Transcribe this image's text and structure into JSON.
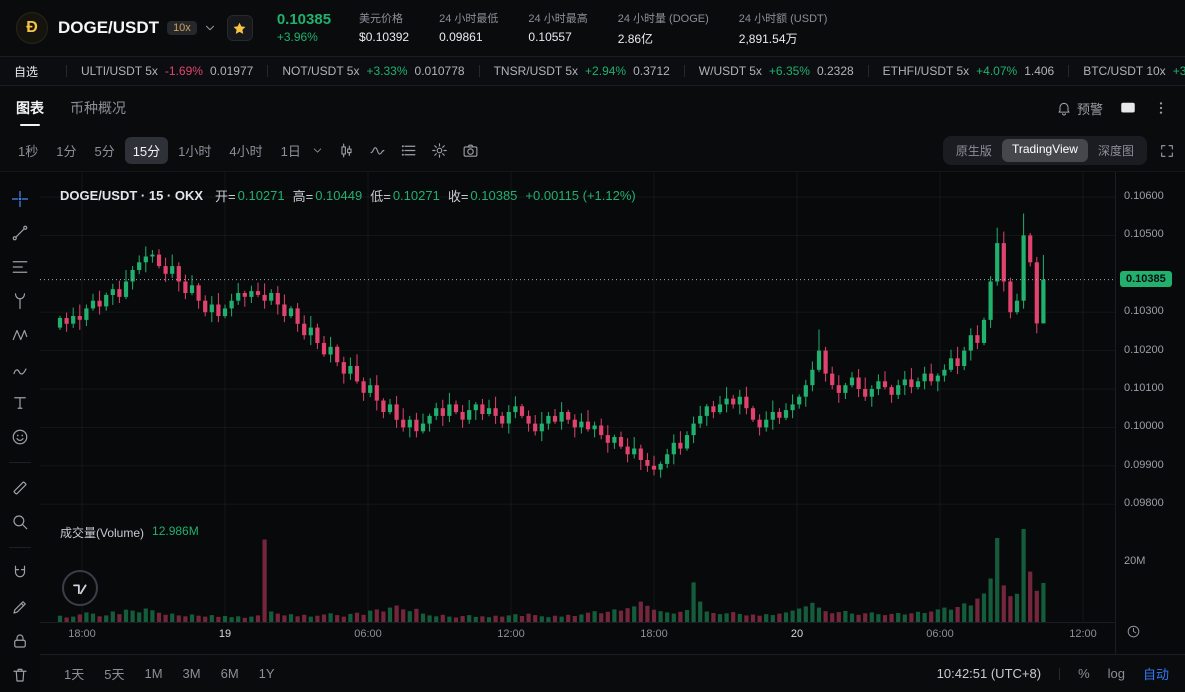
{
  "colors": {
    "up": "#21b06e",
    "down": "#e0446e",
    "accent_blue": "#3478f7",
    "gold": "#f5c542",
    "text_gray": "#8b8f98"
  },
  "header": {
    "pair": "DOGE/USDT",
    "leverage": "10x",
    "price": "0.10385",
    "change": "+3.96%",
    "stats": [
      {
        "label": "美元价格",
        "value": "$0.10392"
      },
      {
        "label": "24 小时最低",
        "value": "0.09861"
      },
      {
        "label": "24 小时最高",
        "value": "0.10557"
      },
      {
        "label": "24 小时量 (DOGE)",
        "value": "2.86亿"
      },
      {
        "label": "24 小时额 (USDT)",
        "value": "2,891.54万"
      }
    ]
  },
  "ticker_bar": {
    "favorites_label": "自选",
    "tickers": [
      {
        "pair": "ULTI/USDT 5x",
        "change": "-1.69%",
        "price": "0.01977",
        "dir": "down"
      },
      {
        "pair": "NOT/USDT 5x",
        "change": "+3.33%",
        "price": "0.010778",
        "dir": "up"
      },
      {
        "pair": "TNSR/USDT 5x",
        "change": "+2.94%",
        "price": "0.3712",
        "dir": "up"
      },
      {
        "pair": "W/USDT 5x",
        "change": "+6.35%",
        "price": "0.2328",
        "dir": "up"
      },
      {
        "pair": "ETHFI/USDT 5x",
        "change": "+4.07%",
        "price": "1.406",
        "dir": "up"
      },
      {
        "pair": "BTC/USDT 10x",
        "change": "+3.23%",
        "price": "60,428.3",
        "dir": "up"
      }
    ]
  },
  "tabs": {
    "chart": "图表",
    "overview": "币种概况",
    "alert": "预警"
  },
  "chart_toolbar": {
    "intervals": [
      "1秒",
      "1分",
      "5分",
      "15分",
      "1小时",
      "4小时",
      "1日"
    ],
    "active_interval": "15分",
    "icon_names": [
      "candle-style-icon",
      "indicators-icon",
      "templates-icon",
      "settings-icon",
      "screenshot-icon"
    ],
    "modes": [
      "原生版",
      "TradingView",
      "深度图"
    ],
    "active_mode": "TradingView"
  },
  "draw_tools": [
    "crosshair-icon",
    "trendline-icon",
    "fib-retracement-icon",
    "pitchfork-icon",
    "pattern-icon",
    "brush-icon",
    "text-tool-icon",
    "emoji-icon",
    "divider",
    "ruler-icon",
    "zoom-icon",
    "divider",
    "magnet-icon",
    "draw-pencil-icon",
    "lock-icon",
    "trash-icon"
  ],
  "legend": {
    "title": "DOGE/USDT · 15 · OKX",
    "open_label": "开=",
    "open": "0.10271",
    "high_label": "高=",
    "high": "0.10449",
    "low_label": "低=",
    "low": "0.10271",
    "close_label": "收=",
    "close": "0.10385",
    "change": "+0.00115 (+1.12%)"
  },
  "volume_legend": {
    "label": "成交量(Volume)",
    "value": "12.986M"
  },
  "axes": {
    "price_ticks": [
      0.106,
      0.105,
      0.103,
      0.102,
      0.101,
      0.1,
      0.099,
      0.098
    ],
    "volume_tick": "20M",
    "time_ticks": [
      {
        "label": "18:00",
        "x": 42
      },
      {
        "label": "19",
        "x": 185,
        "major": true
      },
      {
        "label": "06:00",
        "x": 328
      },
      {
        "label": "12:00",
        "x": 471
      },
      {
        "label": "18:00",
        "x": 614
      },
      {
        "label": "20",
        "x": 757,
        "major": true
      },
      {
        "label": "06:00",
        "x": 900
      },
      {
        "label": "12:00",
        "x": 1043
      }
    ]
  },
  "bottom_bar": {
    "ranges": [
      "1天",
      "5天",
      "1M",
      "3M",
      "6M",
      "1Y"
    ],
    "clock": "10:42:51 (UTC+8)",
    "percent": "%",
    "log": "log",
    "auto": "自动"
  },
  "chart_data": {
    "type": "candlestick",
    "symbol": "DOGE/USDT",
    "exchange": "OKX",
    "interval": "15m",
    "current_price": 0.10385,
    "current_price_label": "0.10385",
    "ylim": [
      0.098,
      0.106
    ],
    "first_open": 0.1026,
    "closes": [
      0.10285,
      0.1027,
      0.1029,
      0.1028,
      0.1031,
      0.1033,
      0.10315,
      0.10345,
      0.1036,
      0.1034,
      0.1038,
      0.1041,
      0.1043,
      0.10445,
      0.1045,
      0.1042,
      0.104,
      0.1042,
      0.1038,
      0.1035,
      0.1037,
      0.1033,
      0.103,
      0.1032,
      0.1029,
      0.1031,
      0.1033,
      0.1035,
      0.1034,
      0.10355,
      0.10345,
      0.1033,
      0.1035,
      0.1032,
      0.1029,
      0.1031,
      0.1027,
      0.1024,
      0.1026,
      0.1022,
      0.1019,
      0.1021,
      0.1017,
      0.1014,
      0.1016,
      0.1012,
      0.1009,
      0.1011,
      0.1007,
      0.1004,
      0.1006,
      0.1002,
      0.1,
      0.1002,
      0.0999,
      0.1001,
      0.1003,
      0.1005,
      0.1003,
      0.1006,
      0.1004,
      0.1002,
      0.10045,
      0.1006,
      0.10035,
      0.1005,
      0.1003,
      0.1001,
      0.1004,
      0.10055,
      0.1003,
      0.1001,
      0.0999,
      0.1001,
      0.1003,
      0.10015,
      0.1004,
      0.1002,
      0.1,
      0.10015,
      0.09995,
      0.10005,
      0.0998,
      0.0996,
      0.09975,
      0.0995,
      0.0993,
      0.09945,
      0.09915,
      0.099,
      0.0989,
      0.09905,
      0.0993,
      0.0996,
      0.09945,
      0.0998,
      0.1001,
      0.1003,
      0.10055,
      0.1004,
      0.1006,
      0.10075,
      0.1006,
      0.1008,
      0.1005,
      0.1002,
      0.1,
      0.1002,
      0.1004,
      0.10025,
      0.10045,
      0.1006,
      0.1008,
      0.1011,
      0.1015,
      0.102,
      0.1014,
      0.1011,
      0.1009,
      0.1011,
      0.1013,
      0.101,
      0.1008,
      0.101,
      0.1012,
      0.10105,
      0.10085,
      0.1011,
      0.10125,
      0.10105,
      0.1012,
      0.1014,
      0.1012,
      0.10135,
      0.1015,
      0.1018,
      0.1016,
      0.102,
      0.1024,
      0.1022,
      0.1028,
      0.1038,
      0.1048,
      0.1038,
      0.103,
      0.1033,
      0.105,
      0.1043,
      0.10271,
      0.10385
    ],
    "volumes": [
      2.1,
      1.5,
      1.8,
      2.5,
      3.2,
      2.8,
      1.9,
      2.2,
      3.5,
      2.6,
      4.1,
      3.8,
      3.2,
      4.5,
      3.9,
      3.1,
      2.4,
      2.8,
      2.2,
      1.9,
      2.5,
      2.1,
      1.8,
      2.3,
      1.7,
      2.0,
      1.6,
      1.9,
      1.4,
      1.8,
      2.2,
      27.5,
      3.5,
      2.8,
      2.2,
      2.6,
      1.9,
      2.4,
      1.8,
      2.1,
      2.5,
      2.9,
      2.3,
      1.8,
      2.7,
      3.1,
      2.4,
      3.8,
      4.2,
      3.5,
      4.8,
      5.5,
      4.2,
      3.6,
      4.4,
      2.8,
      2.2,
      1.9,
      2.4,
      1.8,
      1.5,
      2.0,
      2.3,
      1.7,
      1.9,
      1.6,
      2.1,
      1.8,
      2.2,
      2.6,
      2.0,
      2.8,
      2.3,
      1.9,
      1.6,
      2.1,
      1.8,
      2.4,
      2.0,
      2.5,
      3.1,
      3.6,
      2.9,
      3.4,
      4.2,
      3.8,
      4.6,
      5.2,
      6.8,
      5.4,
      4.1,
      3.6,
      3.2,
      2.8,
      3.4,
      4.0,
      13.2,
      6.8,
      3.5,
      3.0,
      2.6,
      2.9,
      3.3,
      2.7,
      2.2,
      2.5,
      2.1,
      2.6,
      2.3,
      2.8,
      3.2,
      3.8,
      4.5,
      5.2,
      6.4,
      4.8,
      3.6,
      2.9,
      3.3,
      3.7,
      2.8,
      2.4,
      2.9,
      3.2,
      2.6,
      2.3,
      2.7,
      3.0,
      2.5,
      2.9,
      3.4,
      3.0,
      3.5,
      4.2,
      4.8,
      4.1,
      5.0,
      6.2,
      5.5,
      7.8,
      9.5,
      14.5,
      28.0,
      12.2,
      8.6,
      9.4,
      31.0,
      16.8,
      10.4,
      12.986
    ],
    "high_overrides": {
      "14": 0.10462,
      "115": 0.10255,
      "142": 0.1052,
      "146": 0.10557,
      "149": 0.10449
    },
    "low_overrides": {
      "90": 0.09875,
      "149": 0.10271
    }
  }
}
